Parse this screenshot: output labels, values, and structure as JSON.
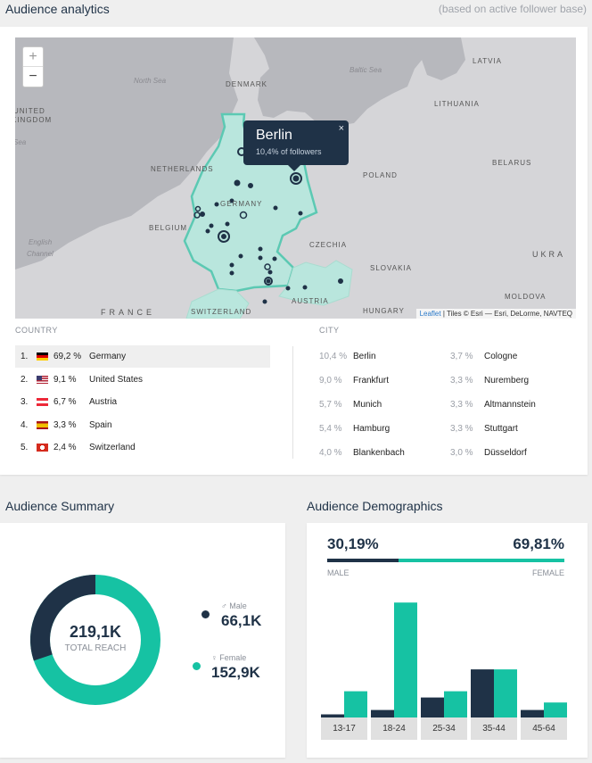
{
  "header": {
    "title": "Audience analytics",
    "note": "(based on active follower base)"
  },
  "map": {
    "zoom_in": "+",
    "zoom_out": "−",
    "popup": {
      "city": "Berlin",
      "share": "10,4% of followers",
      "close": "×"
    },
    "attribution_link": "Leaflet",
    "attribution_text": " | Tiles © Esri — Esri, DeLorme, NAVTEQ",
    "labels": {
      "latvia": "LATVIA",
      "baltic": "Baltic Sea",
      "north_sea": "North Sea",
      "denmark": "DENMARK",
      "lithuania": "LITHUANIA",
      "uk1": "UNITED",
      "uk2": "KINGDOM",
      "sea": "Sea",
      "netherlands": "NETHERLANDS",
      "poland": "POLAND",
      "belarus": "BELARUS",
      "germany": "GERMANY",
      "belgium": "BELGIUM",
      "english1": "English",
      "english2": "Channel",
      "czechia": "CZECHIA",
      "ukra": "UKRA",
      "slovakia": "SLOVAKIA",
      "moldova": "MOLDOVA",
      "france": "FRANCE",
      "switzerland": "SWITZERLAND",
      "austria": "AUSTRIA",
      "hungary": "HUNGARY"
    },
    "colors": {
      "highlight": "#b9e6dd",
      "highlight_border": "#5cc9b3",
      "marker": "#1f3247",
      "land": "#d5d5d8",
      "water": "#b7b8bd"
    }
  },
  "countries": {
    "heading": "COUNTRY",
    "rows": [
      {
        "rank": "1.",
        "pct": "69,2 %",
        "name": "Germany",
        "flag": "de-flag"
      },
      {
        "rank": "2.",
        "pct": "9,1 %",
        "name": "United States",
        "flag": "us-flag"
      },
      {
        "rank": "3.",
        "pct": "6,7 %",
        "name": "Austria",
        "flag": "at-flag"
      },
      {
        "rank": "4.",
        "pct": "3,3 %",
        "name": "Spain",
        "flag": "es-flag"
      },
      {
        "rank": "5.",
        "pct": "2,4 %",
        "name": "Switzerland",
        "flag": "ch-flag"
      }
    ]
  },
  "cities": {
    "heading": "CITY",
    "rows": [
      {
        "pct": "10,4 %",
        "name": "Berlin"
      },
      {
        "pct": "9,0 %",
        "name": "Frankfurt"
      },
      {
        "pct": "5,7 %",
        "name": "Munich"
      },
      {
        "pct": "5,4 %",
        "name": "Hamburg"
      },
      {
        "pct": "4,0 %",
        "name": "Blankenbach"
      },
      {
        "pct": "3,7 %",
        "name": "Cologne"
      },
      {
        "pct": "3,3 %",
        "name": "Nuremberg"
      },
      {
        "pct": "3,3 %",
        "name": "Altmannstein"
      },
      {
        "pct": "3,3 %",
        "name": "Stuttgart"
      },
      {
        "pct": "3,0 %",
        "name": "Düsseldorf"
      }
    ]
  },
  "summary": {
    "title": "Audience Summary",
    "total": "219,1K",
    "total_label": "TOTAL REACH",
    "male_label": "♂ Male",
    "male_value": "66,1K",
    "female_label": "♀ Female",
    "female_value": "152,9K",
    "male_share": 0.3019,
    "colors": {
      "male": "#1f3247",
      "female": "#16c2a3"
    }
  },
  "demographics": {
    "title": "Audience Demographics",
    "male_pct": "30,19%",
    "female_pct": "69,81%",
    "male_label": "MALE",
    "female_label": "FEMALE",
    "male_share": 0.3019,
    "chart_data": {
      "type": "bar",
      "categories": [
        "13-17",
        "18-24",
        "25-34",
        "35-44",
        "45-64"
      ],
      "series": [
        {
          "name": "MALE",
          "values": [
            0.5,
            1.2,
            3.2,
            7.7,
            1.2
          ]
        },
        {
          "name": "FEMALE",
          "values": [
            4.2,
            18.4,
            4.2,
            7.7,
            2.4
          ]
        }
      ],
      "ylim": [
        0,
        20
      ],
      "colors": {
        "male": "#1f3247",
        "female": "#16c2a3"
      }
    }
  }
}
